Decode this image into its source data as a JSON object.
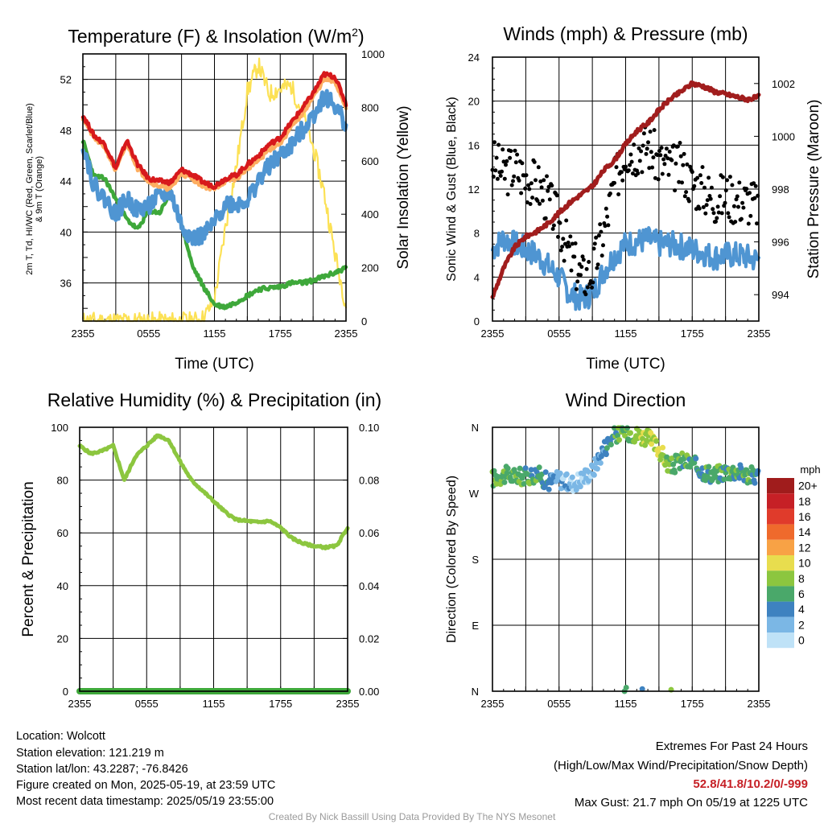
{
  "chart_data": [
    {
      "type": "line",
      "title": "Temperature (F) & Insolation (W/m2)",
      "xlabel": "Time (UTC)",
      "ylabel": "2m T, Td, HI/WC (Red, Green, Scarlet/Blue) & 9m T (Orange)",
      "y2label": "Solar Insolation (Yellow)",
      "x_ticks": [
        "2355",
        "0555",
        "1155",
        "1755",
        "2355"
      ],
      "ylim": [
        33,
        54
      ],
      "yticks": [
        36,
        40,
        44,
        48,
        52
      ],
      "y2lim": [
        0,
        1000
      ],
      "y2ticks": [
        0,
        200,
        400,
        600,
        800,
        1000
      ],
      "x_hours": [
        0,
        1,
        2,
        3,
        4,
        5,
        6,
        7,
        8,
        9,
        10,
        11,
        12,
        13,
        14,
        15,
        16,
        17,
        18,
        19,
        20,
        21,
        22,
        23,
        24
      ],
      "series": [
        {
          "color": "#d7191c",
          "values": [
            49.2,
            47.6,
            46.9,
            45.0,
            47.2,
            45.3,
            44.2,
            44.0,
            43.9,
            44.9,
            44.5,
            43.9,
            43.6,
            44.2,
            44.5,
            45.3,
            46.0,
            46.9,
            47.4,
            48.6,
            49.7,
            50.9,
            52.4,
            52.2,
            50.1
          ]
        },
        {
          "color": "#fdae61",
          "values": [
            49.0,
            47.4,
            46.7,
            44.8,
            47.0,
            45.0,
            44.0,
            43.6,
            43.4,
            44.6,
            44.2,
            43.6,
            43.4,
            44.0,
            44.2,
            45.0,
            45.6,
            46.5,
            47.0,
            48.2,
            49.3,
            50.6,
            52.0,
            51.8,
            49.8
          ]
        },
        {
          "color": "#4f95d2",
          "values": [
            47.0,
            43.7,
            42.6,
            41.4,
            42.6,
            41.7,
            42.1,
            42.8,
            43.1,
            40.5,
            39.5,
            39.7,
            40.7,
            42.3,
            42.2,
            42.5,
            44.0,
            45.2,
            46.0,
            46.8,
            48.0,
            49.2,
            50.7,
            49.9,
            48.5
          ]
        },
        {
          "color": "#3ea83a",
          "values": [
            47.2,
            44.4,
            44.2,
            42.6,
            41.0,
            40.2,
            41.7,
            41.5,
            43.1,
            40.6,
            37.3,
            35.7,
            34.3,
            34.1,
            34.5,
            35.0,
            35.5,
            35.6,
            35.7,
            36.0,
            36.0,
            36.2,
            36.5,
            36.8,
            37.2
          ]
        },
        {
          "color": "#fce155",
          "axis": "y2",
          "values": [
            0,
            0,
            0,
            0,
            0,
            0,
            0,
            0,
            0,
            0,
            0,
            10,
            80,
            350,
            580,
            860,
            960,
            850,
            870,
            880,
            780,
            650,
            480,
            250,
            60
          ]
        }
      ]
    },
    {
      "type": "line",
      "title": "Winds (mph) & Pressure (mb)",
      "xlabel": "Time (UTC)",
      "ylabel": "Sonic Wind & Gust (Blue, Black)",
      "y2label": "Station Pressure (Maroon)",
      "x_ticks": [
        "2355",
        "0555",
        "1155",
        "1755",
        "2355"
      ],
      "ylim": [
        0,
        24
      ],
      "yticks": [
        0,
        4,
        8,
        12,
        16,
        20,
        24
      ],
      "y2lim": [
        993,
        1003
      ],
      "y2ticks": [
        994,
        996,
        998,
        1000,
        1002
      ],
      "x_hours": [
        0,
        1,
        2,
        3,
        4,
        5,
        6,
        7,
        8,
        9,
        10,
        11,
        12,
        13,
        14,
        15,
        16,
        17,
        18,
        19,
        20,
        21,
        22,
        23,
        24
      ],
      "series": [
        {
          "color": "#4f95d2",
          "values": [
            6.5,
            7.5,
            7.0,
            6.5,
            6.0,
            5.0,
            4.0,
            2.5,
            2.0,
            2.5,
            4.5,
            6.0,
            7.0,
            7.2,
            7.4,
            7.0,
            7.0,
            6.8,
            6.5,
            6.2,
            5.8,
            6.0,
            6.0,
            5.8,
            5.5
          ]
        },
        {
          "color": "#000000",
          "values": [
            14.5,
            13.5,
            14.0,
            13.0,
            12.5,
            11.0,
            9.0,
            6.0,
            4.0,
            4.5,
            8.0,
            12.5,
            15.5,
            15.5,
            16.0,
            14.5,
            14.0,
            14.0,
            12.5,
            12.0,
            11.0,
            11.5,
            11.0,
            11.0,
            10.5
          ]
        },
        {
          "color": "#a11d1d",
          "axis": "y2",
          "values": [
            993.9,
            995.0,
            995.8,
            996.2,
            996.4,
            996.7,
            997.1,
            997.5,
            997.8,
            998.1,
            998.7,
            999.1,
            999.7,
            1000.2,
            1000.5,
            1001.0,
            1001.4,
            1001.7,
            1002.0,
            1001.9,
            1001.7,
            1001.6,
            1001.5,
            1001.4,
            1001.5
          ]
        }
      ]
    },
    {
      "type": "line",
      "title": "Relative Humidity (%) & Precipitation (in)",
      "xlabel": "",
      "ylabel": "Percent & Precipitation",
      "x_ticks": [
        "2355",
        "0555",
        "1155",
        "1755",
        "2355"
      ],
      "ylim": [
        0,
        100
      ],
      "yticks": [
        0,
        20,
        40,
        60,
        80,
        100
      ],
      "y2lim": [
        0,
        0.1
      ],
      "y2ticks": [
        "0.00",
        "0.02",
        "0.04",
        "0.06",
        "0.08",
        "0.10"
      ],
      "x_hours": [
        0,
        1,
        2,
        3,
        4,
        5,
        6,
        7,
        8,
        9,
        10,
        11,
        12,
        13,
        14,
        15,
        16,
        17,
        18,
        19,
        20,
        21,
        22,
        23,
        24
      ],
      "series": [
        {
          "color": "#8cc63f",
          "values": [
            93,
            90,
            91,
            93,
            80,
            89,
            93,
            97,
            95,
            87,
            80,
            76,
            72,
            68,
            65,
            64.5,
            64,
            64.5,
            62,
            58,
            56,
            55,
            54.5,
            55,
            62
          ]
        },
        {
          "color": "#3ea83a",
          "values": [
            0,
            0,
            0,
            0,
            0,
            0,
            0,
            0,
            0,
            0,
            0,
            0,
            0,
            0,
            0,
            0,
            0,
            0,
            0,
            0,
            0,
            0,
            0,
            0,
            0
          ]
        }
      ]
    },
    {
      "type": "scatter",
      "title": "Wind Direction",
      "xlabel": "",
      "ylabel": "Direction (Colored By Speed)",
      "x_ticks": [
        "2355",
        "0555",
        "1155",
        "1755",
        "2355"
      ],
      "y_ticks": [
        "N",
        "E",
        "S",
        "W",
        "N"
      ],
      "ylim": [
        0,
        360
      ],
      "x_hours": [
        0,
        1,
        2,
        3,
        4,
        5,
        6,
        7,
        8,
        9,
        10,
        11,
        12,
        13,
        14,
        15,
        16,
        17,
        18,
        19,
        20,
        21,
        22,
        23,
        24
      ],
      "directions": [
        290,
        295,
        293,
        293,
        297,
        285,
        290,
        282,
        290,
        300,
        330,
        350,
        355,
        350,
        345,
        330,
        305,
        315,
        310,
        300,
        295,
        300,
        300,
        295,
        293
      ],
      "speeds": [
        7,
        7,
        6,
        6,
        6,
        4,
        2,
        2,
        1,
        2,
        4,
        6,
        7,
        8,
        9,
        9,
        7,
        6,
        6,
        6,
        6,
        6,
        6,
        6,
        5
      ],
      "extra_points": [
        {
          "hour": 11.9,
          "dir": 0,
          "speed": 6
        },
        {
          "hour": 12.05,
          "dir": 5,
          "speed": 5
        },
        {
          "hour": 13.5,
          "dir": 3,
          "speed": 4
        },
        {
          "hour": 16.1,
          "dir": 2,
          "speed": 7
        }
      ],
      "legend": {
        "title": "mph",
        "labels": [
          "20+",
          "18",
          "16",
          "14",
          "12",
          "10",
          "8",
          "6",
          "4",
          "2",
          "0"
        ],
        "colors": [
          "#a01c1c",
          "#c62026",
          "#e03b2b",
          "#ef6a2c",
          "#f8a245",
          "#e8dd4e",
          "#8cc63f",
          "#4aa86a",
          "#3e82c0",
          "#7bb7e5",
          "#bfe2f7"
        ]
      }
    }
  ],
  "info": {
    "location": "Location: Wolcott",
    "elevation": "Station elevation: 121.219 m",
    "latlon": "Station lat/lon: 43.2287; -76.8426",
    "created": "Figure created on Mon, 2025-05-19, at 23:59 UTC",
    "recent": "Most recent data timestamp: 2025/05/19 23:55:00"
  },
  "extremes": {
    "title": "Extremes For Past 24 Hours",
    "subtitle": "(High/Low/Max Wind/Precipitation/Snow Depth)",
    "values": "52.8/41.8/10.2/0/-999",
    "values_color": "#c62026",
    "gust": "Max Gust: 21.7 mph On 05/19 at 1225 UTC"
  },
  "credit": "Created By Nick Bassill Using Data Provided By The NYS Mesonet"
}
